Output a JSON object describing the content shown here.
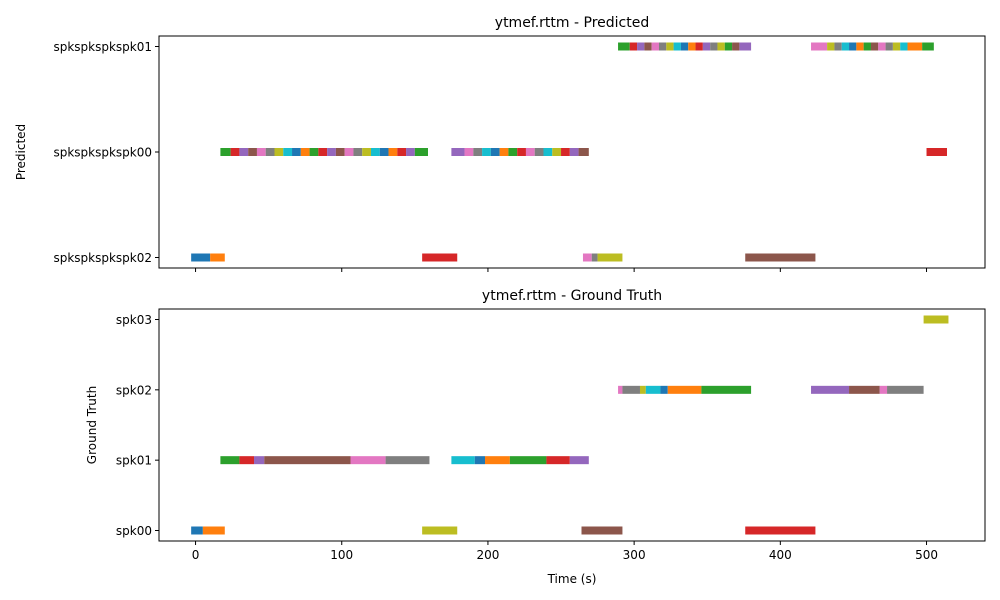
{
  "chart_data": [
    {
      "type": "timeline",
      "title": "ytmef.rttm - Predicted",
      "ylabel": "Predicted",
      "xlabel": "",
      "xlim": [
        -25,
        540
      ],
      "xticks": [
        0,
        100,
        200,
        300,
        400,
        500
      ],
      "show_tick_labels": false,
      "rows": [
        "spkspkspkspk02",
        "spkspkspkspk00",
        "spkspkspkspk01"
      ],
      "segments": [
        {
          "row": "spkspkspkspk02",
          "start": -3,
          "end": 10,
          "color": "#1f77b4"
        },
        {
          "row": "spkspkspkspk02",
          "start": 10,
          "end": 20,
          "color": "#ff7f0e"
        },
        {
          "row": "spkspkspkspk00",
          "start": 17,
          "end": 24,
          "color": "#2ca02c"
        },
        {
          "row": "spkspkspkspk00",
          "start": 24,
          "end": 30,
          "color": "#d62728"
        },
        {
          "row": "spkspkspkspk00",
          "start": 30,
          "end": 36,
          "color": "#9467bd"
        },
        {
          "row": "spkspkspkspk00",
          "start": 36,
          "end": 42,
          "color": "#8c564b"
        },
        {
          "row": "spkspkspkspk00",
          "start": 42,
          "end": 48,
          "color": "#e377c2"
        },
        {
          "row": "spkspkspkspk00",
          "start": 48,
          "end": 54,
          "color": "#7f7f7f"
        },
        {
          "row": "spkspkspkspk00",
          "start": 54,
          "end": 60,
          "color": "#bcbd22"
        },
        {
          "row": "spkspkspkspk00",
          "start": 60,
          "end": 66,
          "color": "#17becf"
        },
        {
          "row": "spkspkspkspk00",
          "start": 66,
          "end": 72,
          "color": "#1f77b4"
        },
        {
          "row": "spkspkspkspk00",
          "start": 72,
          "end": 78,
          "color": "#ff7f0e"
        },
        {
          "row": "spkspkspkspk00",
          "start": 78,
          "end": 84,
          "color": "#2ca02c"
        },
        {
          "row": "spkspkspkspk00",
          "start": 84,
          "end": 90,
          "color": "#d62728"
        },
        {
          "row": "spkspkspkspk00",
          "start": 90,
          "end": 96,
          "color": "#9467bd"
        },
        {
          "row": "spkspkspkspk00",
          "start": 96,
          "end": 102,
          "color": "#8c564b"
        },
        {
          "row": "spkspkspkspk00",
          "start": 102,
          "end": 108,
          "color": "#e377c2"
        },
        {
          "row": "spkspkspkspk00",
          "start": 108,
          "end": 114,
          "color": "#7f7f7f"
        },
        {
          "row": "spkspkspkspk00",
          "start": 114,
          "end": 120,
          "color": "#bcbd22"
        },
        {
          "row": "spkspkspkspk00",
          "start": 120,
          "end": 126,
          "color": "#17becf"
        },
        {
          "row": "spkspkspkspk00",
          "start": 126,
          "end": 132,
          "color": "#1f77b4"
        },
        {
          "row": "spkspkspkspk00",
          "start": 132,
          "end": 138,
          "color": "#ff7f0e"
        },
        {
          "row": "spkspkspkspk00",
          "start": 138,
          "end": 144,
          "color": "#d62728"
        },
        {
          "row": "spkspkspkspk00",
          "start": 144,
          "end": 150,
          "color": "#9467bd"
        },
        {
          "row": "spkspkspkspk00",
          "start": 150,
          "end": 159,
          "color": "#2ca02c"
        },
        {
          "row": "spkspkspkspk02",
          "start": 155,
          "end": 179,
          "color": "#d62728"
        },
        {
          "row": "spkspkspkspk00",
          "start": 175,
          "end": 184,
          "color": "#9467bd"
        },
        {
          "row": "spkspkspkspk00",
          "start": 184,
          "end": 190,
          "color": "#e377c2"
        },
        {
          "row": "spkspkspkspk00",
          "start": 190,
          "end": 196,
          "color": "#7f7f7f"
        },
        {
          "row": "spkspkspkspk00",
          "start": 196,
          "end": 202,
          "color": "#17becf"
        },
        {
          "row": "spkspkspkspk00",
          "start": 202,
          "end": 208,
          "color": "#1f77b4"
        },
        {
          "row": "spkspkspkspk00",
          "start": 208,
          "end": 214,
          "color": "#ff7f0e"
        },
        {
          "row": "spkspkspkspk00",
          "start": 214,
          "end": 220,
          "color": "#2ca02c"
        },
        {
          "row": "spkspkspkspk00",
          "start": 220,
          "end": 226,
          "color": "#d62728"
        },
        {
          "row": "spkspkspkspk00",
          "start": 226,
          "end": 232,
          "color": "#e377c2"
        },
        {
          "row": "spkspkspkspk00",
          "start": 232,
          "end": 238,
          "color": "#7f7f7f"
        },
        {
          "row": "spkspkspkspk00",
          "start": 238,
          "end": 244,
          "color": "#17becf"
        },
        {
          "row": "spkspkspkspk00",
          "start": 244,
          "end": 250,
          "color": "#bcbd22"
        },
        {
          "row": "spkspkspkspk00",
          "start": 250,
          "end": 256,
          "color": "#d62728"
        },
        {
          "row": "spkspkspkspk00",
          "start": 256,
          "end": 262,
          "color": "#9467bd"
        },
        {
          "row": "spkspkspkspk00",
          "start": 262,
          "end": 269,
          "color": "#8c564b"
        },
        {
          "row": "spkspkspkspk02",
          "start": 265,
          "end": 271,
          "color": "#e377c2"
        },
        {
          "row": "spkspkspkspk02",
          "start": 271,
          "end": 275,
          "color": "#7f7f7f"
        },
        {
          "row": "spkspkspkspk02",
          "start": 275,
          "end": 292,
          "color": "#bcbd22"
        },
        {
          "row": "spkspkspkspk01",
          "start": 289,
          "end": 297,
          "color": "#2ca02c"
        },
        {
          "row": "spkspkspkspk01",
          "start": 297,
          "end": 302,
          "color": "#d62728"
        },
        {
          "row": "spkspkspkspk01",
          "start": 302,
          "end": 307,
          "color": "#9467bd"
        },
        {
          "row": "spkspkspkspk01",
          "start": 307,
          "end": 312,
          "color": "#8c564b"
        },
        {
          "row": "spkspkspkspk01",
          "start": 312,
          "end": 317,
          "color": "#e377c2"
        },
        {
          "row": "spkspkspkspk01",
          "start": 317,
          "end": 322,
          "color": "#7f7f7f"
        },
        {
          "row": "spkspkspkspk01",
          "start": 322,
          "end": 327,
          "color": "#bcbd22"
        },
        {
          "row": "spkspkspkspk01",
          "start": 327,
          "end": 332,
          "color": "#17becf"
        },
        {
          "row": "spkspkspkspk01",
          "start": 332,
          "end": 337,
          "color": "#1f77b4"
        },
        {
          "row": "spkspkspkspk01",
          "start": 337,
          "end": 342,
          "color": "#ff7f0e"
        },
        {
          "row": "spkspkspkspk01",
          "start": 342,
          "end": 347,
          "color": "#d62728"
        },
        {
          "row": "spkspkspkspk01",
          "start": 347,
          "end": 352,
          "color": "#9467bd"
        },
        {
          "row": "spkspkspkspk01",
          "start": 352,
          "end": 357,
          "color": "#7f7f7f"
        },
        {
          "row": "spkspkspkspk01",
          "start": 357,
          "end": 362,
          "color": "#bcbd22"
        },
        {
          "row": "spkspkspkspk01",
          "start": 362,
          "end": 367,
          "color": "#2ca02c"
        },
        {
          "row": "spkspkspkspk01",
          "start": 367,
          "end": 372,
          "color": "#8c564b"
        },
        {
          "row": "spkspkspkspk01",
          "start": 372,
          "end": 380,
          "color": "#9467bd"
        },
        {
          "row": "spkspkspkspk02",
          "start": 376,
          "end": 424,
          "color": "#8c564b"
        },
        {
          "row": "spkspkspkspk01",
          "start": 421,
          "end": 432,
          "color": "#e377c2"
        },
        {
          "row": "spkspkspkspk01",
          "start": 432,
          "end": 437,
          "color": "#bcbd22"
        },
        {
          "row": "spkspkspkspk01",
          "start": 437,
          "end": 442,
          "color": "#7f7f7f"
        },
        {
          "row": "spkspkspkspk01",
          "start": 442,
          "end": 447,
          "color": "#17becf"
        },
        {
          "row": "spkspkspkspk01",
          "start": 447,
          "end": 452,
          "color": "#1f77b4"
        },
        {
          "row": "spkspkspkspk01",
          "start": 452,
          "end": 457,
          "color": "#ff7f0e"
        },
        {
          "row": "spkspkspkspk01",
          "start": 457,
          "end": 462,
          "color": "#2ca02c"
        },
        {
          "row": "spkspkspkspk01",
          "start": 462,
          "end": 467,
          "color": "#8c564b"
        },
        {
          "row": "spkspkspkspk01",
          "start": 467,
          "end": 472,
          "color": "#e377c2"
        },
        {
          "row": "spkspkspkspk01",
          "start": 472,
          "end": 477,
          "color": "#7f7f7f"
        },
        {
          "row": "spkspkspkspk01",
          "start": 477,
          "end": 482,
          "color": "#bcbd22"
        },
        {
          "row": "spkspkspkspk01",
          "start": 482,
          "end": 487,
          "color": "#17becf"
        },
        {
          "row": "spkspkspkspk01",
          "start": 487,
          "end": 497,
          "color": "#ff7f0e"
        },
        {
          "row": "spkspkspkspk01",
          "start": 497,
          "end": 505,
          "color": "#2ca02c"
        },
        {
          "row": "spkspkspkspk00",
          "start": 500,
          "end": 514,
          "color": "#d62728"
        }
      ]
    },
    {
      "type": "timeline",
      "title": "ytmef.rttm - Ground Truth",
      "ylabel": "Ground Truth",
      "xlabel": "Time (s)",
      "xlim": [
        -25,
        540
      ],
      "xticks": [
        0,
        100,
        200,
        300,
        400,
        500
      ],
      "show_tick_labels": true,
      "rows": [
        "spk00",
        "spk01",
        "spk02",
        "spk03"
      ],
      "segments": [
        {
          "row": "spk00",
          "start": -3,
          "end": 5,
          "color": "#1f77b4"
        },
        {
          "row": "spk00",
          "start": 5,
          "end": 20,
          "color": "#ff7f0e"
        },
        {
          "row": "spk01",
          "start": 17,
          "end": 30,
          "color": "#2ca02c"
        },
        {
          "row": "spk01",
          "start": 30,
          "end": 40,
          "color": "#d62728"
        },
        {
          "row": "spk01",
          "start": 40,
          "end": 47,
          "color": "#9467bd"
        },
        {
          "row": "spk01",
          "start": 47,
          "end": 106,
          "color": "#8c564b"
        },
        {
          "row": "spk01",
          "start": 106,
          "end": 130,
          "color": "#e377c2"
        },
        {
          "row": "spk01",
          "start": 130,
          "end": 160,
          "color": "#7f7f7f"
        },
        {
          "row": "spk00",
          "start": 155,
          "end": 179,
          "color": "#bcbd22"
        },
        {
          "row": "spk01",
          "start": 175,
          "end": 191,
          "color": "#17becf"
        },
        {
          "row": "spk01",
          "start": 191,
          "end": 198,
          "color": "#1f77b4"
        },
        {
          "row": "spk01",
          "start": 198,
          "end": 215,
          "color": "#ff7f0e"
        },
        {
          "row": "spk01",
          "start": 215,
          "end": 240,
          "color": "#2ca02c"
        },
        {
          "row": "spk01",
          "start": 240,
          "end": 256,
          "color": "#d62728"
        },
        {
          "row": "spk01",
          "start": 256,
          "end": 269,
          "color": "#9467bd"
        },
        {
          "row": "spk00",
          "start": 264,
          "end": 292,
          "color": "#8c564b"
        },
        {
          "row": "spk02",
          "start": 289,
          "end": 292,
          "color": "#e377c2"
        },
        {
          "row": "spk02",
          "start": 292,
          "end": 304,
          "color": "#7f7f7f"
        },
        {
          "row": "spk02",
          "start": 304,
          "end": 308,
          "color": "#bcbd22"
        },
        {
          "row": "spk02",
          "start": 308,
          "end": 318,
          "color": "#17becf"
        },
        {
          "row": "spk02",
          "start": 318,
          "end": 323,
          "color": "#1f77b4"
        },
        {
          "row": "spk02",
          "start": 323,
          "end": 346,
          "color": "#ff7f0e"
        },
        {
          "row": "spk02",
          "start": 346,
          "end": 380,
          "color": "#2ca02c"
        },
        {
          "row": "spk00",
          "start": 376,
          "end": 424,
          "color": "#d62728"
        },
        {
          "row": "spk02",
          "start": 421,
          "end": 447,
          "color": "#9467bd"
        },
        {
          "row": "spk02",
          "start": 447,
          "end": 468,
          "color": "#8c564b"
        },
        {
          "row": "spk02",
          "start": 468,
          "end": 473,
          "color": "#e377c2"
        },
        {
          "row": "spk02",
          "start": 473,
          "end": 498,
          "color": "#7f7f7f"
        },
        {
          "row": "spk03",
          "start": 498,
          "end": 515,
          "color": "#bcbd22"
        }
      ]
    }
  ]
}
